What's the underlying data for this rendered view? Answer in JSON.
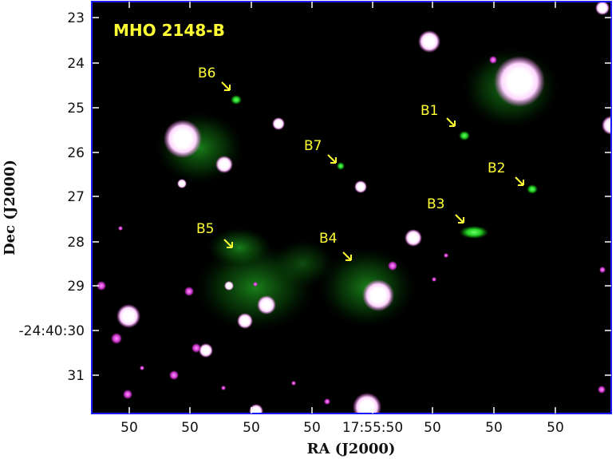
{
  "image": {
    "title": "MHO 2148-B",
    "x_axis_title": "RA (J2000)",
    "y_axis_title": "Dec (J2000)",
    "x_tick_labels": [
      "50",
      "50",
      "50",
      "50",
      "17:55:50",
      "50",
      "50",
      "50"
    ],
    "y_tick_labels": [
      "23",
      "24",
      "25",
      "26",
      "27",
      "28",
      "29",
      "-24:40:30",
      "31"
    ],
    "annotations": [
      {
        "label": "B1"
      },
      {
        "label": "B2"
      },
      {
        "label": "B3"
      },
      {
        "label": "B4"
      },
      {
        "label": "B5"
      },
      {
        "label": "B6"
      },
      {
        "label": "B7"
      }
    ],
    "colors": {
      "frame": "#1a1aff",
      "annotation": "#ffff33",
      "stars": "#ffffff",
      "stars_halo": "#ff66ff",
      "emission": "#22cc22",
      "background": "#000000"
    }
  }
}
